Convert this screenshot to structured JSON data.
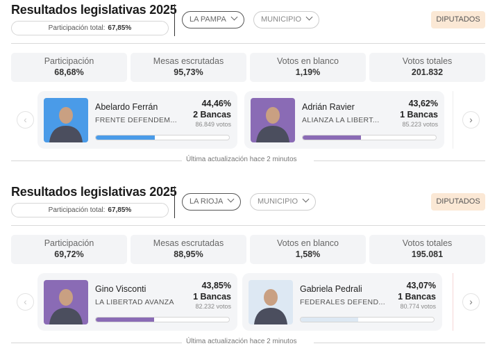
{
  "widgets": [
    {
      "title": "Resultados legislativas 2025",
      "participation_total_label": "Participación total:",
      "participation_total_value": "67,85%",
      "province_select": "LA PAMPA",
      "municipio_select": "MUNICIPIO",
      "chamber_badge": "DIPUTADOS",
      "stats": [
        {
          "label": "Participación",
          "value": "68,68%"
        },
        {
          "label": "Mesas escrutadas",
          "value": "95,73%"
        },
        {
          "label": "Votos en blanco",
          "value": "1,19%"
        },
        {
          "label": "Votos totales",
          "value": "201.832"
        }
      ],
      "candidates": [
        {
          "name": "Abelardo Ferrán",
          "party": "FRENTE DEFENDEM...",
          "percent": "44,46%",
          "seats": "2 Bancas",
          "votes": "86.849 votos",
          "bar_fraction": 0.4446,
          "color": "#4a9be8",
          "photo_bg": "#4a9be8",
          "photo_icon": "person-photo"
        },
        {
          "name": "Adrián Ravier",
          "party": "ALIANZA LA LIBERT...",
          "percent": "43,62%",
          "seats": "1 Bancas",
          "votes": "85.223 votos",
          "bar_fraction": 0.4362,
          "color": "#8a6bb5",
          "photo_bg": "#8a6bb5",
          "photo_icon": "person-photo"
        }
      ],
      "nav": {
        "prev": "‹",
        "next": "›"
      },
      "footer": "Última actualización hace 2 minutos"
    },
    {
      "title": "Resultados legislativas 2025",
      "participation_total_label": "Participación total:",
      "participation_total_value": "67,85%",
      "province_select": "LA RIOJA",
      "municipio_select": "MUNICIPIO",
      "chamber_badge": "DIPUTADOS",
      "stats": [
        {
          "label": "Participación",
          "value": "69,72%"
        },
        {
          "label": "Mesas escrutadas",
          "value": "88,95%"
        },
        {
          "label": "Votos en blanco",
          "value": "1,58%"
        },
        {
          "label": "Votos totales",
          "value": "195.081"
        }
      ],
      "candidates": [
        {
          "name": "Gino Visconti",
          "party": "LA LIBERTAD AVANZA",
          "percent": "43,85%",
          "seats": "1 Bancas",
          "votes": "82.232 votos",
          "bar_fraction": 0.4385,
          "color": "#8a6bb5",
          "photo_bg": "#8a6bb5",
          "photo_icon": "person-photo"
        },
        {
          "name": "Gabriela Pedrali",
          "party": "FEDERALES DEFEND...",
          "percent": "43,07%",
          "seats": "1 Bancas",
          "votes": "80.774 votos",
          "bar_fraction": 0.4307,
          "color": "#dde8f3",
          "photo_bg": "#dde8f3",
          "photo_icon": "person-photo"
        }
      ],
      "nav": {
        "prev": "‹",
        "next": "›"
      },
      "footer": "Última actualización hace 2 minutos"
    }
  ]
}
